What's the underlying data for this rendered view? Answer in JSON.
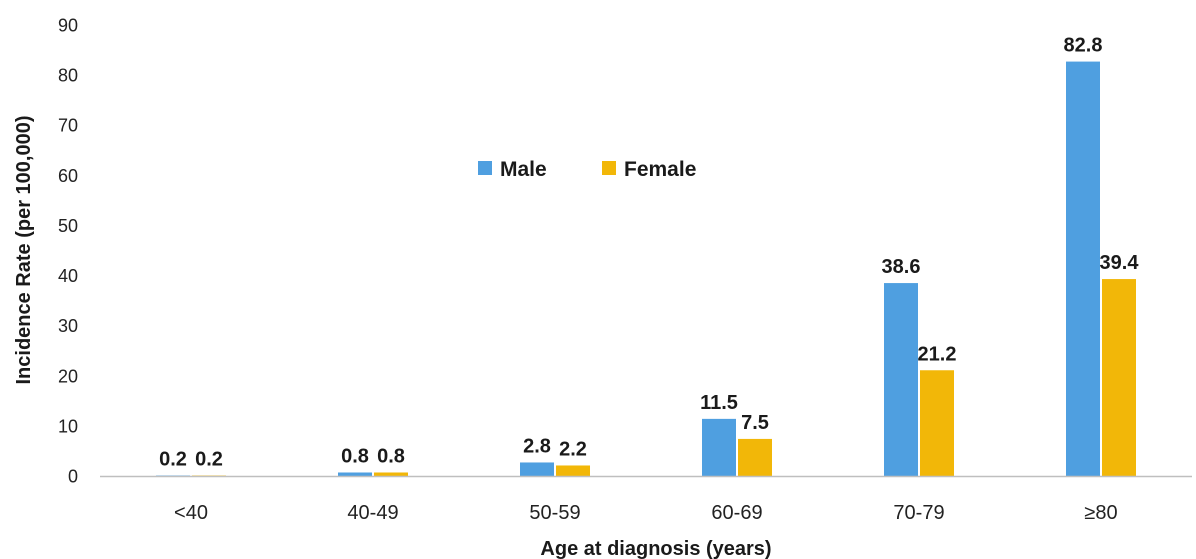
{
  "chart_data": {
    "type": "bar",
    "xlabel": "Age at diagnosis (years)",
    "ylabel": "Incidence Rate (per 100,000)",
    "categories": [
      "<40",
      "40-49",
      "50-59",
      "60-69",
      "70-79",
      "≥80"
    ],
    "series": [
      {
        "name": "Male",
        "color": "#4f9fe0",
        "values": [
          0.2,
          0.8,
          2.8,
          11.5,
          38.6,
          82.8
        ],
        "labels": [
          "0.2",
          "0.8",
          "2.8",
          "11.5",
          "38.6",
          "82.8"
        ]
      },
      {
        "name": "Female",
        "color": "#f2b708",
        "values": [
          0.2,
          0.8,
          2.2,
          7.5,
          21.2,
          39.4
        ],
        "labels": [
          "0.2",
          "0.8",
          "2.2",
          "7.5",
          "21.2",
          "39.4"
        ]
      }
    ],
    "ylim": [
      0,
      90
    ],
    "yticks": [
      0,
      10,
      20,
      30,
      40,
      50,
      60,
      70,
      80,
      90
    ],
    "grid": false,
    "legend_position": "top-center"
  }
}
